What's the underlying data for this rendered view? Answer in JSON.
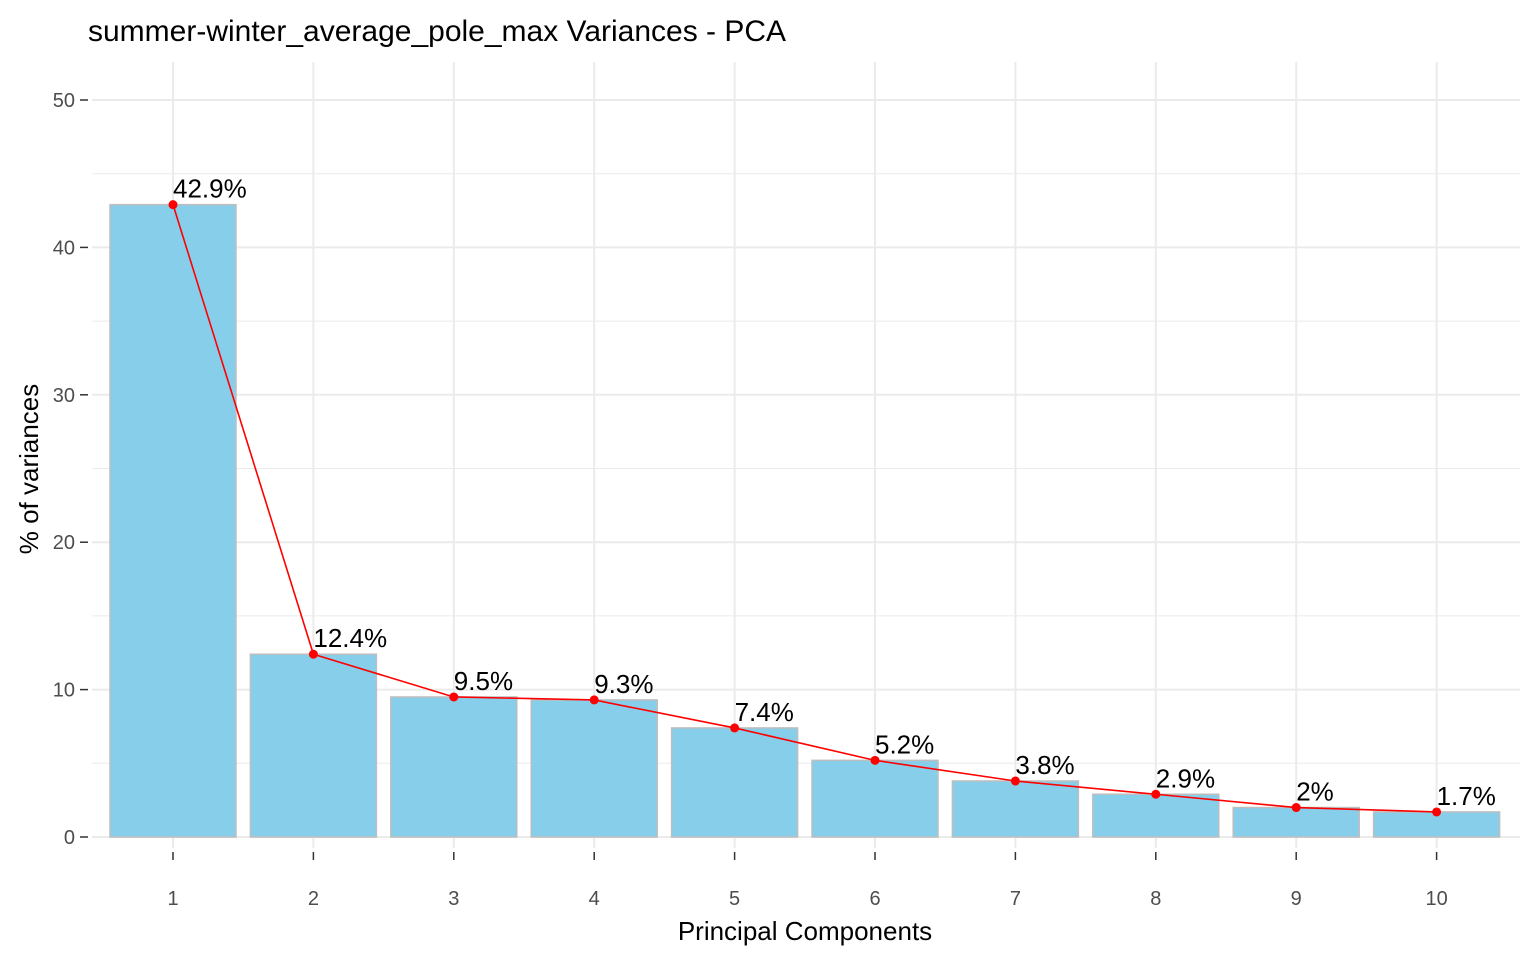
{
  "chart_data": {
    "type": "bar",
    "title": "summer-winter_average_pole_max Variances - PCA",
    "xlabel": "Principal Components",
    "ylabel": "% of variances",
    "categories": [
      "1",
      "2",
      "3",
      "4",
      "5",
      "6",
      "7",
      "8",
      "9",
      "10"
    ],
    "values": [
      42.9,
      12.4,
      9.5,
      9.3,
      7.4,
      5.2,
      3.8,
      2.9,
      2.0,
      1.7
    ],
    "data_labels": [
      "42.9%",
      "12.4%",
      "9.5%",
      "9.3%",
      "7.4%",
      "5.2%",
      "3.8%",
      "2.9%",
      "2%",
      "1.7%"
    ],
    "overlay_line": {
      "values": [
        42.9,
        12.4,
        9.5,
        9.3,
        7.4,
        5.2,
        3.8,
        2.9,
        2.0,
        1.7
      ]
    },
    "ylim": [
      0,
      52.5
    ],
    "yticks": [
      0,
      10,
      20,
      30,
      40,
      50
    ],
    "grid": true,
    "colors": {
      "bar_fill": "#87CEEB",
      "bar_outline": "#BEBEBE",
      "line": "#FF0000",
      "grid": "#EBEBEB"
    }
  }
}
